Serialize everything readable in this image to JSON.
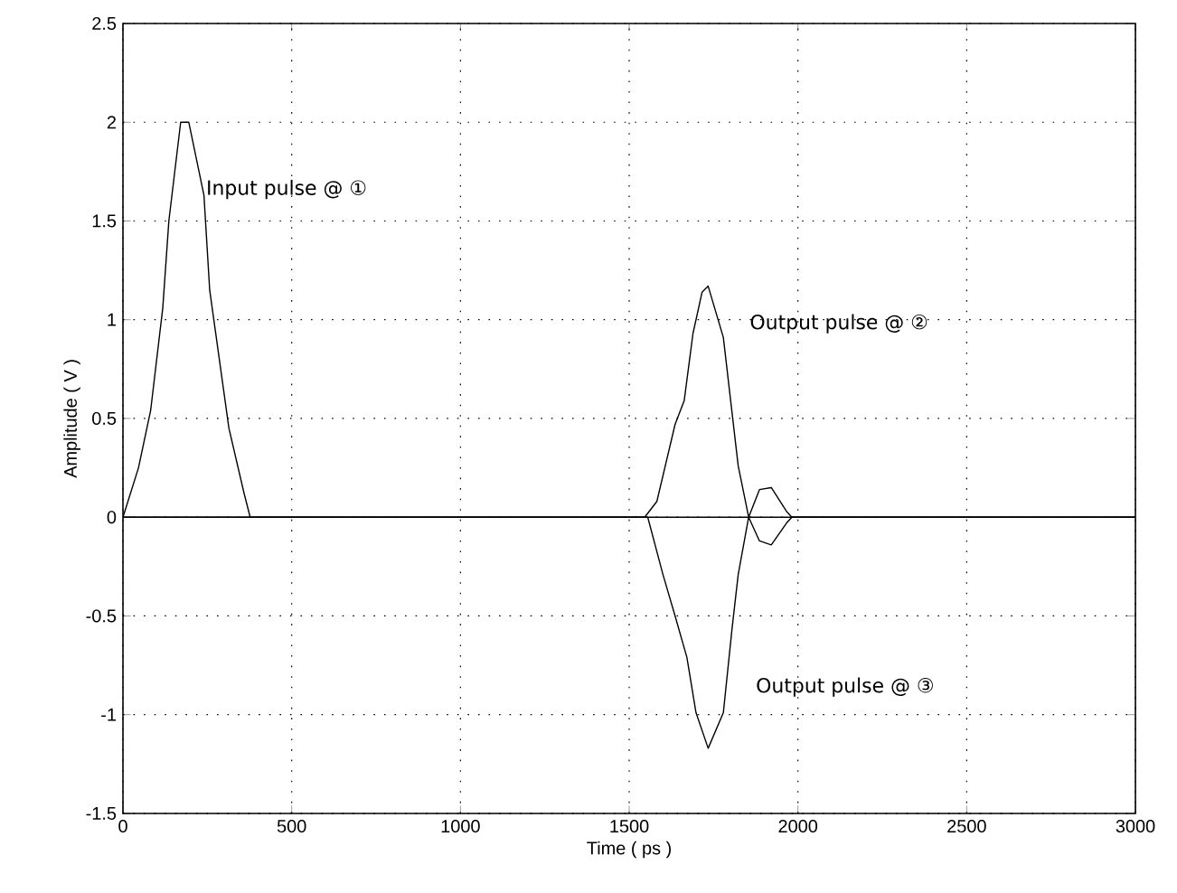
{
  "chart_data": {
    "type": "line",
    "xlabel": "Time  ( ps )",
    "ylabel": "Amplitude ( V )",
    "xlim": [
      0,
      3000
    ],
    "ylim": [
      -1.5,
      2.5
    ],
    "xticks": [
      0,
      500,
      1000,
      1500,
      2000,
      2500,
      3000
    ],
    "yticks": [
      -1.5,
      -1,
      -0.5,
      0,
      0.5,
      1,
      1.5,
      2,
      2.5
    ],
    "grid": true,
    "marker": "none",
    "line_style": "solid",
    "series": [
      {
        "color": "#000000",
        "x": [
          0,
          46,
          82,
          118,
          136,
          171,
          195,
          240,
          257,
          314,
          359,
          377,
          3000
        ],
        "values": [
          0,
          0.25,
          0.54,
          1.06,
          1.5,
          2.0,
          2.0,
          1.63,
          1.15,
          0.45,
          0.12,
          0,
          0
        ]
      },
      {
        "color": "#000000",
        "x": [
          0,
          1546,
          1582,
          1636,
          1663,
          1689,
          1716,
          1734,
          1779,
          1823,
          1854,
          1886,
          1921,
          1966,
          1982,
          3000
        ],
        "values": [
          0,
          0,
          0.08,
          0.47,
          0.59,
          0.93,
          1.14,
          1.17,
          0.91,
          0.26,
          0,
          0.14,
          0.15,
          0.03,
          0,
          0
        ]
      },
      {
        "color": "#000000",
        "x": [
          0,
          1555,
          1600,
          1636,
          1671,
          1698,
          1734,
          1779,
          1805,
          1823,
          1854,
          1886,
          1921,
          1966,
          1982,
          3000
        ],
        "values": [
          0,
          0,
          -0.29,
          -0.5,
          -0.71,
          -0.99,
          -1.17,
          -0.99,
          -0.56,
          -0.29,
          0,
          -0.12,
          -0.14,
          -0.03,
          0,
          0
        ]
      }
    ],
    "annotations": [
      "Input pulse @ ①",
      "Output pulse @ ②",
      "Output pulse @ ③"
    ]
  }
}
